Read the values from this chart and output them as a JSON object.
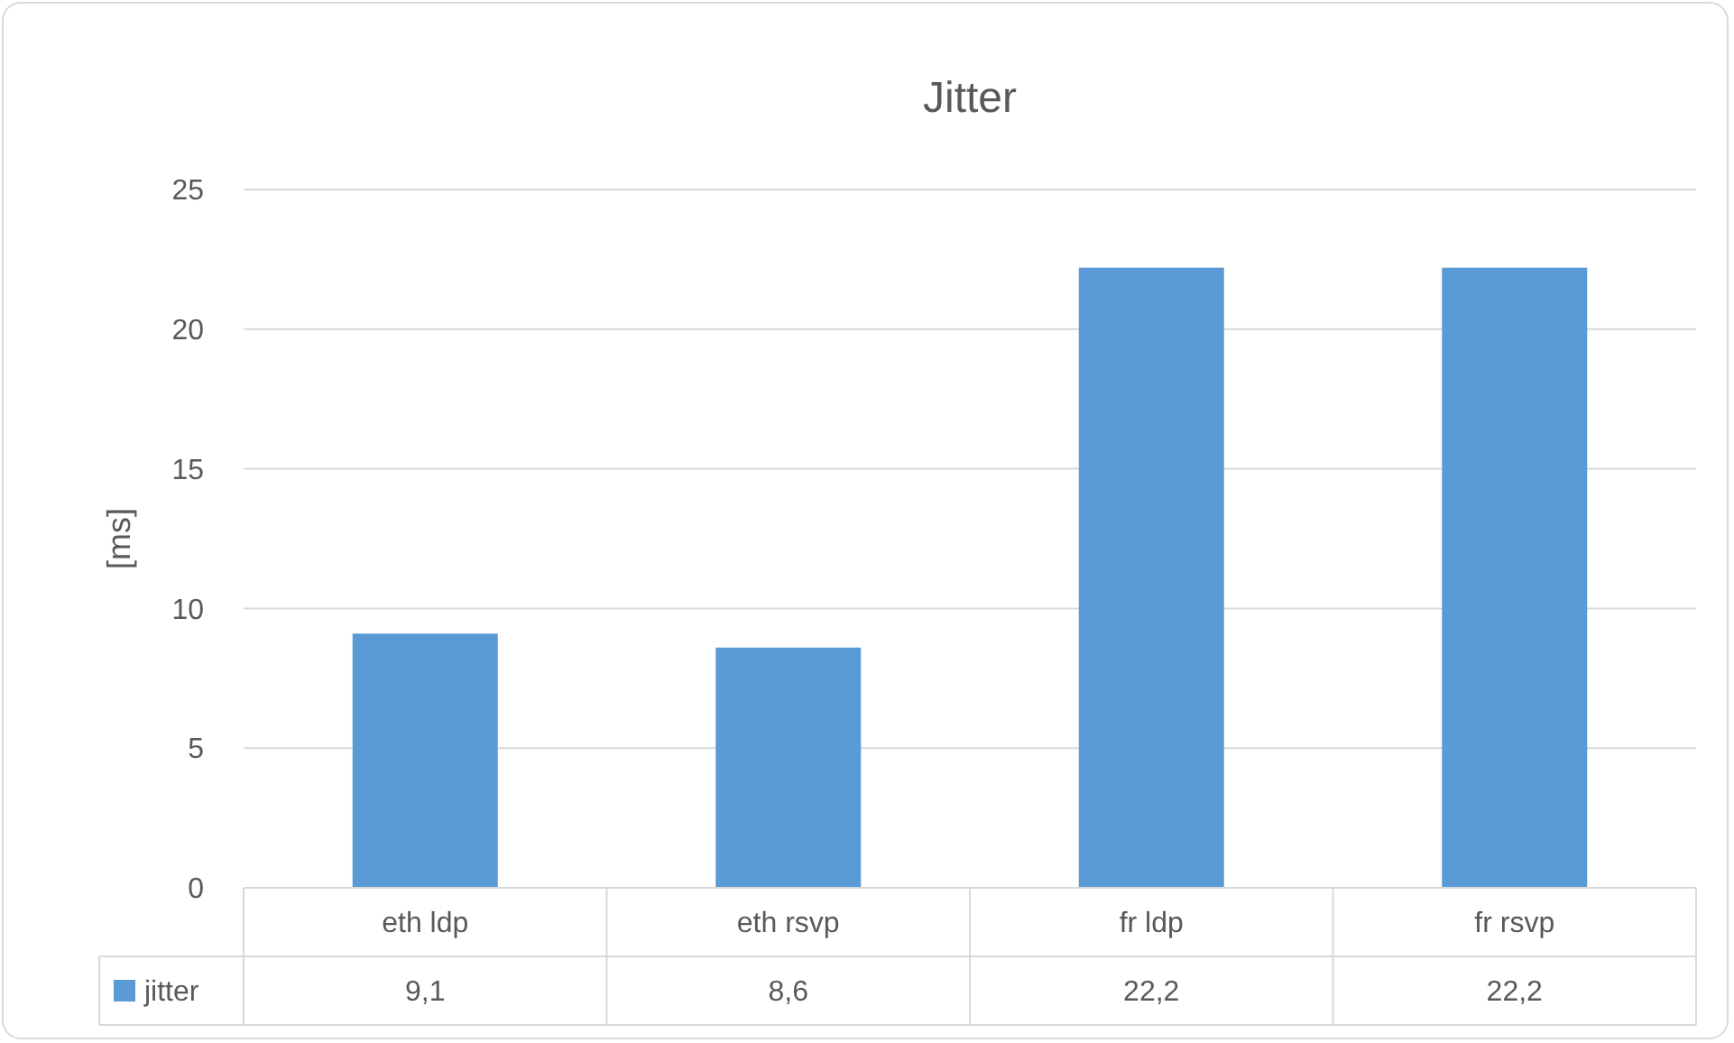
{
  "chart_data": {
    "type": "bar",
    "title": "Jitter",
    "ylabel": "[ms]",
    "categories": [
      "eth ldp",
      "eth rsvp",
      "fr ldp",
      "fr rsvp"
    ],
    "series": [
      {
        "name": "jitter",
        "color": "#5b9bd5",
        "values": [
          9.1,
          8.6,
          22.2,
          22.2
        ],
        "value_labels": [
          "9,1",
          "8,6",
          "22,2",
          "22,2"
        ]
      }
    ],
    "ylim": [
      0,
      25
    ],
    "yticks": [
      0,
      5,
      10,
      15,
      20,
      25
    ],
    "grid": "y",
    "legend": "bottom"
  }
}
